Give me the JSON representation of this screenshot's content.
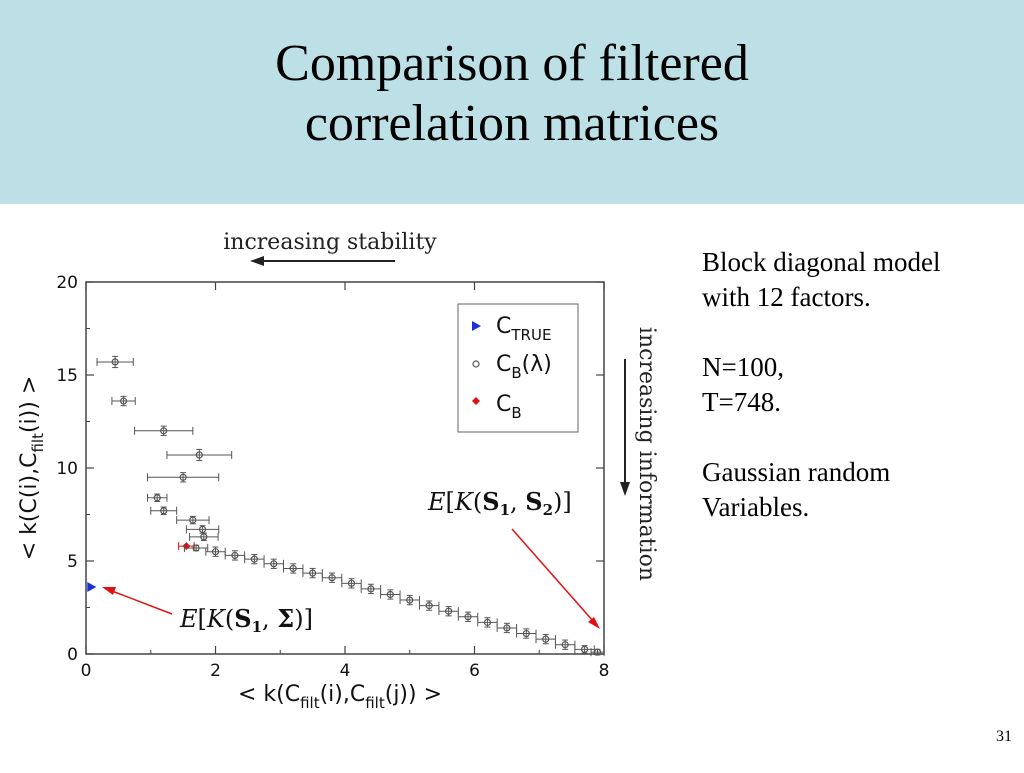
{
  "slide": {
    "title_line1": "Comparison of filtered",
    "title_line2": "correlation matrices",
    "notes": {
      "line1": "Block diagonal model",
      "line2": "with 12 factors.",
      "line3": "N=100,",
      "line4": "T=748.",
      "line5": "Gaussian random",
      "line6": "Variables."
    },
    "page_number": "31"
  },
  "chart_data": {
    "type": "scatter",
    "xlabel": "< k(Cfilt(i),Cfilt(j)) >",
    "ylabel": "< k(C(i),Cfilt(i)) >",
    "xlim": [
      0,
      8
    ],
    "ylim": [
      0,
      20
    ],
    "xticks": [
      "0",
      "2",
      "4",
      "6",
      "8"
    ],
    "yticks": [
      "0",
      "5",
      "10",
      "15",
      "20"
    ],
    "grid": false,
    "legend_position": "top-right",
    "legend": [
      "C_TRUE",
      "C_B(λ)",
      "C_B"
    ],
    "annotations": {
      "top": "increasing stability",
      "right": "increasing information",
      "e_s1_s2": "E[K(S1, S2)]",
      "e_s1_sigma": "E[K(S1, Σ)]"
    },
    "colors": {
      "c_true": "#1b2fd9",
      "c_b": "#e01010",
      "c_b_lambda": "#555555"
    },
    "series": [
      {
        "name": "C_TRUE",
        "points": [
          {
            "x": 0.02,
            "y": 3.6
          }
        ]
      },
      {
        "name": "C_B",
        "points": [
          {
            "x": 1.55,
            "y": 5.8,
            "xerr": 0.12
          }
        ]
      },
      {
        "name": "C_B(λ)",
        "points": [
          {
            "x": 0.45,
            "y": 15.7,
            "xerr": 0.28,
            "yerr": 0.3
          },
          {
            "x": 0.58,
            "y": 13.6,
            "xerr": 0.18,
            "yerr": 0.25
          },
          {
            "x": 1.2,
            "y": 12.0,
            "xerr": 0.45,
            "yerr": 0.25
          },
          {
            "x": 1.75,
            "y": 10.7,
            "xerr": 0.5,
            "yerr": 0.3
          },
          {
            "x": 1.5,
            "y": 9.5,
            "xerr": 0.55,
            "yerr": 0.25
          },
          {
            "x": 1.1,
            "y": 8.4,
            "xerr": 0.15,
            "yerr": 0.2
          },
          {
            "x": 1.2,
            "y": 7.7,
            "xerr": 0.2,
            "yerr": 0.2
          },
          {
            "x": 1.65,
            "y": 7.2,
            "xerr": 0.25,
            "yerr": 0.2
          },
          {
            "x": 1.8,
            "y": 6.7,
            "xerr": 0.25,
            "yerr": 0.2
          },
          {
            "x": 1.82,
            "y": 6.3,
            "xerr": 0.22,
            "yerr": 0.2
          },
          {
            "x": 1.7,
            "y": 5.7,
            "xerr": 0.18,
            "yerr": 0.15
          },
          {
            "x": 2.0,
            "y": 5.5,
            "xerr": 0.15,
            "yerr": 0.25
          },
          {
            "x": 2.3,
            "y": 5.3,
            "xerr": 0.15,
            "yerr": 0.25
          },
          {
            "x": 2.6,
            "y": 5.1,
            "xerr": 0.15,
            "yerr": 0.25
          },
          {
            "x": 2.9,
            "y": 4.85,
            "xerr": 0.15,
            "yerr": 0.25
          },
          {
            "x": 3.2,
            "y": 4.6,
            "xerr": 0.15,
            "yerr": 0.25
          },
          {
            "x": 3.5,
            "y": 4.35,
            "xerr": 0.15,
            "yerr": 0.25
          },
          {
            "x": 3.8,
            "y": 4.1,
            "xerr": 0.15,
            "yerr": 0.25
          },
          {
            "x": 4.1,
            "y": 3.8,
            "xerr": 0.15,
            "yerr": 0.25
          },
          {
            "x": 4.4,
            "y": 3.5,
            "xerr": 0.15,
            "yerr": 0.25
          },
          {
            "x": 4.7,
            "y": 3.2,
            "xerr": 0.15,
            "yerr": 0.25
          },
          {
            "x": 5.0,
            "y": 2.9,
            "xerr": 0.15,
            "yerr": 0.25
          },
          {
            "x": 5.3,
            "y": 2.6,
            "xerr": 0.15,
            "yerr": 0.25
          },
          {
            "x": 5.6,
            "y": 2.3,
            "xerr": 0.15,
            "yerr": 0.25
          },
          {
            "x": 5.9,
            "y": 2.0,
            "xerr": 0.15,
            "yerr": 0.25
          },
          {
            "x": 6.2,
            "y": 1.7,
            "xerr": 0.15,
            "yerr": 0.25
          },
          {
            "x": 6.5,
            "y": 1.4,
            "xerr": 0.15,
            "yerr": 0.25
          },
          {
            "x": 6.8,
            "y": 1.1,
            "xerr": 0.15,
            "yerr": 0.25
          },
          {
            "x": 7.1,
            "y": 0.8,
            "xerr": 0.15,
            "yerr": 0.25
          },
          {
            "x": 7.4,
            "y": 0.5,
            "xerr": 0.15,
            "yerr": 0.25
          },
          {
            "x": 7.7,
            "y": 0.25,
            "xerr": 0.15,
            "yerr": 0.2
          },
          {
            "x": 7.9,
            "y": 0.1,
            "xerr": 0.1,
            "yerr": 0.15
          }
        ]
      }
    ]
  }
}
